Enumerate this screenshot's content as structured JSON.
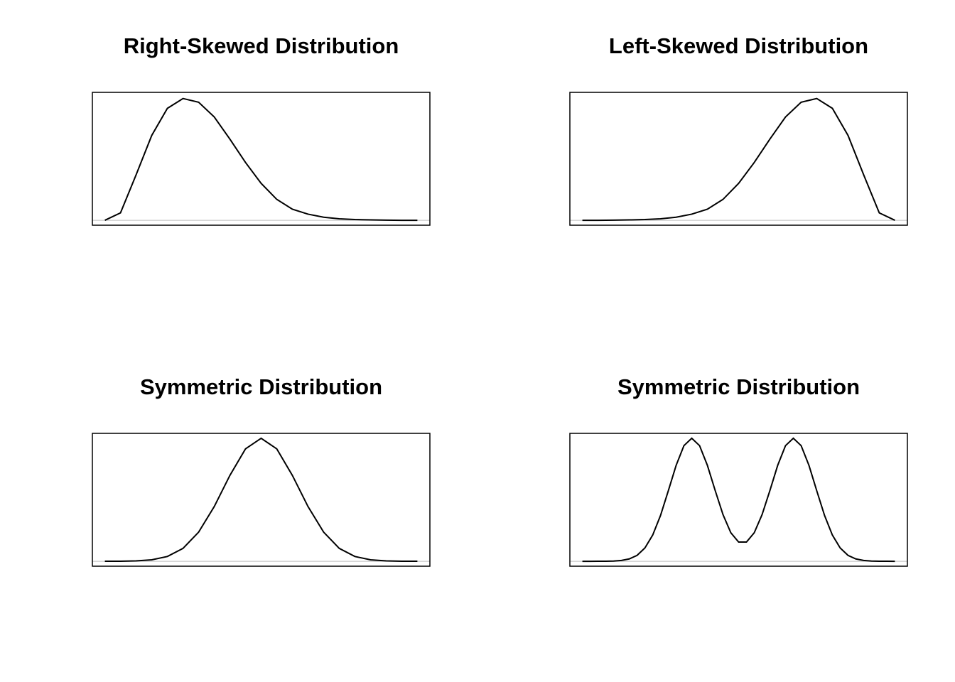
{
  "chart_data": [
    {
      "type": "line",
      "title": "Right-Skewed Distribution",
      "color": "#000000",
      "x": [
        0,
        0.05,
        0.1,
        0.15,
        0.2,
        0.25,
        0.3,
        0.35,
        0.4,
        0.45,
        0.5,
        0.55,
        0.6,
        0.65,
        0.7,
        0.75,
        0.8,
        0.85,
        0.9,
        0.95,
        1
      ],
      "values": [
        0,
        0.06,
        0.37,
        0.69,
        0.91,
        0.99,
        0.96,
        0.84,
        0.66,
        0.47,
        0.3,
        0.17,
        0.09,
        0.05,
        0.025,
        0.012,
        0.006,
        0.003,
        0.001,
        0,
        0
      ],
      "xlim": [
        -0.04,
        1.04
      ],
      "ylim": [
        -0.04,
        1.04
      ]
    },
    {
      "type": "line",
      "title": "Left-Skewed Distribution",
      "color": "#000000",
      "x": [
        0,
        0.05,
        0.1,
        0.15,
        0.2,
        0.25,
        0.3,
        0.35,
        0.4,
        0.45,
        0.5,
        0.55,
        0.6,
        0.65,
        0.7,
        0.75,
        0.8,
        0.85,
        0.9,
        0.95,
        1
      ],
      "values": [
        0,
        0,
        0.001,
        0.003,
        0.006,
        0.012,
        0.025,
        0.05,
        0.09,
        0.17,
        0.3,
        0.47,
        0.66,
        0.84,
        0.96,
        0.99,
        0.91,
        0.69,
        0.37,
        0.06,
        0
      ],
      "xlim": [
        -0.04,
        1.04
      ],
      "ylim": [
        -0.04,
        1.04
      ]
    },
    {
      "type": "line",
      "title": "Symmetric Distribution",
      "color": "#000000",
      "x": [
        0,
        0.05,
        0.1,
        0.15,
        0.2,
        0.25,
        0.3,
        0.35,
        0.4,
        0.45,
        0.5,
        0.55,
        0.6,
        0.65,
        0.7,
        0.75,
        0.8,
        0.85,
        0.9,
        0.95,
        1
      ],
      "values": [
        0.0001,
        0.0007,
        0.003,
        0.012,
        0.039,
        0.105,
        0.237,
        0.445,
        0.698,
        0.914,
        1,
        0.914,
        0.698,
        0.445,
        0.237,
        0.105,
        0.039,
        0.012,
        0.003,
        0.0007,
        0.0001
      ],
      "xlim": [
        -0.04,
        1.04
      ],
      "ylim": [
        -0.04,
        1.04
      ]
    },
    {
      "type": "line",
      "title": "Symmetric Distribution",
      "color": "#000000",
      "x": [
        0,
        0.025,
        0.05,
        0.075,
        0.1,
        0.125,
        0.15,
        0.175,
        0.2,
        0.225,
        0.25,
        0.275,
        0.3,
        0.325,
        0.35,
        0.375,
        0.4,
        0.425,
        0.45,
        0.475,
        0.5,
        0.525,
        0.55,
        0.575,
        0.6,
        0.625,
        0.65,
        0.675,
        0.7,
        0.725,
        0.75,
        0.775,
        0.8,
        0.825,
        0.85,
        0.875,
        0.9,
        0.925,
        0.95,
        0.975,
        1
      ],
      "values": [
        0,
        0,
        0.0001,
        0.0006,
        0.002,
        0.0067,
        0.019,
        0.048,
        0.108,
        0.213,
        0.372,
        0.573,
        0.78,
        0.94,
        1,
        0.94,
        0.78,
        0.575,
        0.379,
        0.232,
        0.156,
        0.156,
        0.232,
        0.379,
        0.575,
        0.78,
        0.94,
        1,
        0.94,
        0.78,
        0.573,
        0.372,
        0.213,
        0.108,
        0.048,
        0.019,
        0.0067,
        0.002,
        0.0006,
        0.0001,
        0
      ],
      "xlim": [
        -0.04,
        1.04
      ],
      "ylim": [
        -0.04,
        1.04
      ]
    }
  ]
}
